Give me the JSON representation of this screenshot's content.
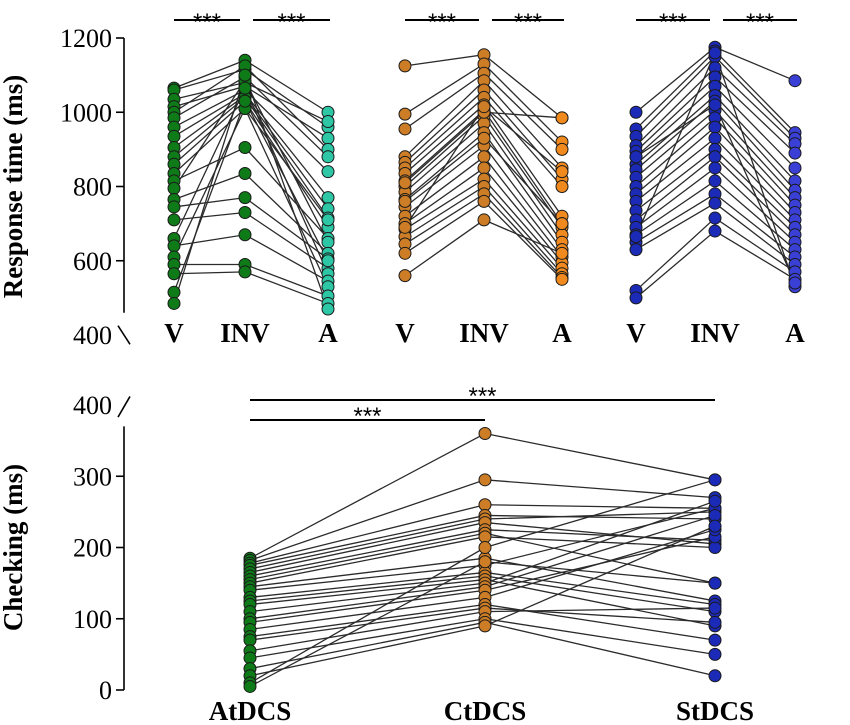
{
  "chart_data": [
    {
      "type": "scatter",
      "subtype": "paired-line-dot",
      "ylabel": "Response time (ms)",
      "ylim": [
        400,
        1200
      ],
      "yticks": [
        400,
        600,
        800,
        1000,
        1200
      ],
      "groups": [
        {
          "categories": [
            "V",
            "INV",
            "A"
          ],
          "colors": [
            "#0e7a18",
            "#0e7a18",
            "#2ec7a6"
          ],
          "significance": [
            {
              "from": 0,
              "to": 1,
              "label": "***"
            },
            {
              "from": 1,
              "to": 2,
              "label": "***"
            }
          ],
          "subjects": [
            [
              1065,
              1140,
              1000
            ],
            [
              1060,
              1115,
              960
            ],
            [
              1035,
              1080,
              975
            ],
            [
              1015,
              1070,
              930
            ],
            [
              1000,
              1125,
              900
            ],
            [
              985,
              1095,
              880
            ],
            [
              960,
              1060,
              840
            ],
            [
              935,
              1050,
              770
            ],
            [
              905,
              1045,
              740
            ],
            [
              880,
              1040,
              715
            ],
            [
              860,
              1030,
              690
            ],
            [
              835,
              1010,
              710
            ],
            [
              815,
              905,
              660
            ],
            [
              795,
              1085,
              650
            ],
            [
              765,
              835,
              620
            ],
            [
              745,
              770,
              605
            ],
            [
              710,
              730,
              580
            ],
            [
              660,
              1065,
              565
            ],
            [
              640,
              670,
              545
            ],
            [
              610,
              1010,
              530
            ],
            [
              590,
              590,
              505
            ],
            [
              565,
              570,
              485
            ],
            [
              515,
              1030,
              600
            ],
            [
              485,
              1100,
              470
            ]
          ]
        },
        {
          "categories": [
            "V",
            "INV",
            "A"
          ],
          "colors": [
            "#cc7d26",
            "#cc7d26",
            "#f08a1e"
          ],
          "significance": [
            {
              "from": 0,
              "to": 1,
              "label": "***"
            },
            {
              "from": 1,
              "to": 2,
              "label": "***"
            }
          ],
          "subjects": [
            [
              1125,
              1155,
              985
            ],
            [
              995,
              1130,
              920
            ],
            [
              955,
              1105,
              900
            ],
            [
              880,
              1085,
              850
            ],
            [
              865,
              1060,
              820
            ],
            [
              850,
              1040,
              800
            ],
            [
              835,
              1020,
              720
            ],
            [
              815,
              1005,
              700
            ],
            [
              800,
              990,
              690
            ],
            [
              785,
              970,
              670
            ],
            [
              765,
              945,
              650
            ],
            [
              745,
              910,
              630
            ],
            [
              720,
              880,
              610
            ],
            [
              700,
              850,
              595
            ],
            [
              685,
              820,
              580
            ],
            [
              665,
              800,
              565
            ],
            [
              645,
              780,
              555
            ],
            [
              620,
              760,
              550
            ],
            [
              560,
              710,
              620
            ],
            [
              810,
              1000,
              985
            ],
            [
              760,
              930,
              700
            ],
            [
              690,
              1015,
              840
            ]
          ]
        },
        {
          "categories": [
            "V",
            "INV",
            "A"
          ],
          "colors": [
            "#1c2ab8",
            "#1c2ab8",
            "#3a40d6"
          ],
          "significance": [
            {
              "from": 0,
              "to": 1,
              "label": "***"
            },
            {
              "from": 1,
              "to": 2,
              "label": "***"
            }
          ],
          "subjects": [
            [
              1000,
              1175,
              1085
            ],
            [
              955,
              1165,
              945
            ],
            [
              935,
              1150,
              930
            ],
            [
              910,
              1120,
              915
            ],
            [
              895,
              1095,
              890
            ],
            [
              880,
              1070,
              850
            ],
            [
              860,
              1045,
              815
            ],
            [
              845,
              1030,
              790
            ],
            [
              825,
              1005,
              770
            ],
            [
              800,
              985,
              750
            ],
            [
              780,
              960,
              730
            ],
            [
              760,
              930,
              710
            ],
            [
              735,
              900,
              690
            ],
            [
              710,
              880,
              670
            ],
            [
              690,
              850,
              650
            ],
            [
              670,
              815,
              630
            ],
            [
              650,
              780,
              610
            ],
            [
              630,
              755,
              590
            ],
            [
              520,
              715,
              570
            ],
            [
              500,
              680,
              550
            ],
            [
              665,
              1160,
              530
            ],
            [
              880,
              1020,
              540
            ]
          ]
        }
      ]
    },
    {
      "type": "scatter",
      "subtype": "paired-line-dot",
      "ylabel": "Checking (ms)",
      "ylim": [
        0,
        400
      ],
      "yticks": [
        0,
        100,
        200,
        300,
        400
      ],
      "categories": [
        "AtDCS",
        "CtDCS",
        "StDCS"
      ],
      "colors": [
        "#0e7a18",
        "#cc7d26",
        "#1c2ab8"
      ],
      "significance": [
        {
          "from": 0,
          "to": 1,
          "label": "***"
        },
        {
          "from": 0,
          "to": 2,
          "label": "***"
        }
      ],
      "subjects": [
        [
          185,
          360,
          295
        ],
        [
          182,
          295,
          270
        ],
        [
          178,
          260,
          255
        ],
        [
          175,
          245,
          240
        ],
        [
          170,
          240,
          250
        ],
        [
          165,
          235,
          205
        ],
        [
          160,
          225,
          210
        ],
        [
          155,
          220,
          150
        ],
        [
          150,
          215,
          200
        ],
        [
          145,
          185,
          125
        ],
        [
          140,
          175,
          255
        ],
        [
          130,
          165,
          120
        ],
        [
          125,
          160,
          110
        ],
        [
          120,
          155,
          90
        ],
        [
          110,
          150,
          265
        ],
        [
          100,
          145,
          245
        ],
        [
          95,
          140,
          215
        ],
        [
          85,
          130,
          225
        ],
        [
          75,
          120,
          70
        ],
        [
          70,
          115,
          95
        ],
        [
          55,
          110,
          115
        ],
        [
          45,
          100,
          50
        ],
        [
          30,
          95,
          20
        ],
        [
          20,
          90,
          230
        ],
        [
          10,
          200,
          295
        ],
        [
          5,
          180,
          150
        ]
      ]
    }
  ]
}
